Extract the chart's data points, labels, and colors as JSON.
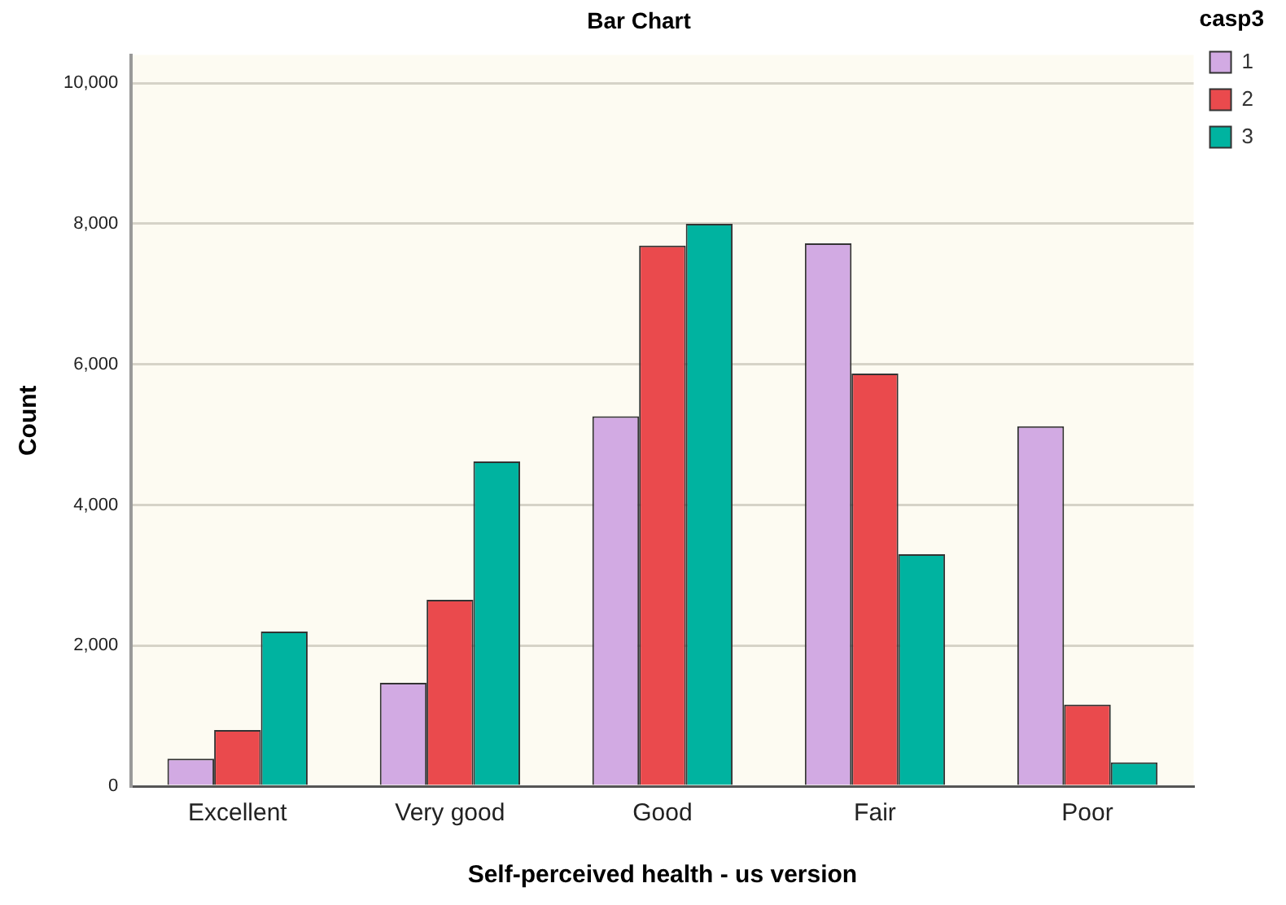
{
  "chart_data": {
    "type": "bar",
    "title": "Bar Chart",
    "xlabel": "Self-perceived health - us version",
    "ylabel": "Count",
    "legend_title": "casp3",
    "categories": [
      "Excellent",
      "Very good",
      "Good",
      "Fair",
      "Poor"
    ],
    "series": [
      {
        "name": "1",
        "color": "#d2aae3",
        "values": [
          390,
          1470,
          5260,
          7720,
          5120
        ]
      },
      {
        "name": "2",
        "color": "#ea4a4d",
        "values": [
          800,
          2650,
          7690,
          5870,
          1160
        ]
      },
      {
        "name": "3",
        "color": "#00b3a0",
        "values": [
          2200,
          4620,
          8000,
          3300,
          340
        ]
      }
    ],
    "ylim": [
      0,
      10400
    ],
    "yticks": [
      {
        "value": 0,
        "label": "0"
      },
      {
        "value": 2000,
        "label": "2,000"
      },
      {
        "value": 4000,
        "label": "4,000"
      },
      {
        "value": 6000,
        "label": "6,000"
      },
      {
        "value": 8000,
        "label": "8,000"
      },
      {
        "value": 10000,
        "label": "10,000"
      }
    ],
    "grid": "y",
    "legend": "top right"
  }
}
